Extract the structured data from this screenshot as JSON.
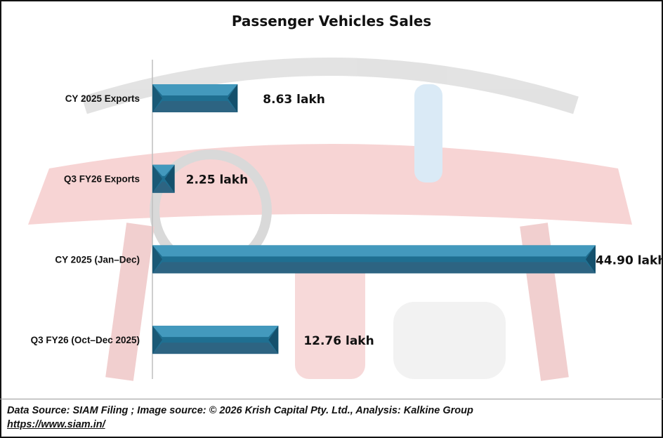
{
  "chart_data": {
    "type": "bar",
    "orientation": "horizontal",
    "title": "Passenger Vehicles Sales",
    "categories": [
      "CY 2025 Exports",
      "Q3 FY26 Exports",
      "CY 2025 (Jan–Dec)",
      "Q3 FY26 (Oct–Dec 2025)"
    ],
    "values": [
      8.63,
      2.25,
      44.9,
      12.76
    ],
    "data_labels": [
      "8.63 lakh",
      "2.25 lakh",
      "44.90 lakh",
      "12.76 lakh"
    ],
    "unit": "lakh",
    "xlabel": "",
    "ylabel": "",
    "xlim": [
      0,
      44.9
    ],
    "grid": false,
    "bar_color": "#2e7fa3"
  },
  "footer": {
    "source": "Data Source: SIAM Filing ; Image source: © 2026 Krish Capital Pty. Ltd., Analysis: Kalkine Group",
    "link": "https://www.siam.in/"
  }
}
